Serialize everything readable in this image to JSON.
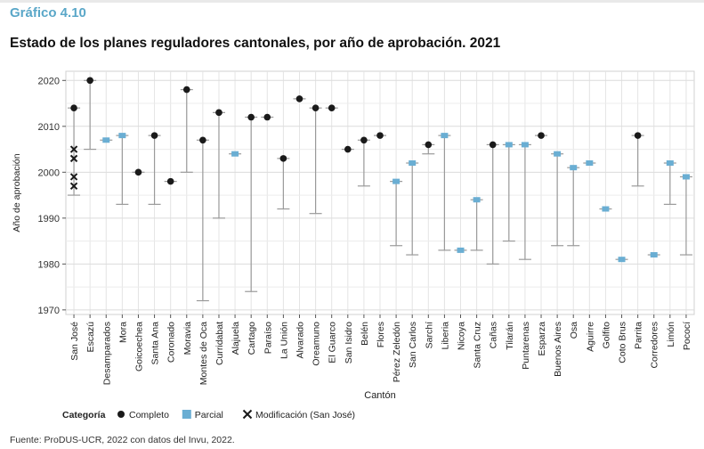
{
  "header": {
    "figure_label": "Gráfico 4.10",
    "title": "Estado de los planes reguladores cantonales, por año de aprobación. 2021"
  },
  "source_note": "Fuente: ProDUS-UCR, 2022 con datos del Invu, 2022.",
  "colors": {
    "completo": "#1a1a1a",
    "parcial": "#6aaed3",
    "modificacion": "#1a1a1a",
    "range_line": "#9a9a9a",
    "figure_label": "#5aa7c8"
  },
  "chart_data": {
    "type": "scatter",
    "title": "Estado de los planes reguladores cantonales, por año de aprobación. 2021",
    "xlabel": "Cantón",
    "ylabel": "Año de aprobación",
    "ylim": [
      1969,
      2022
    ],
    "yticks": [
      1970,
      1980,
      1990,
      2000,
      2010,
      2020
    ],
    "grid": true,
    "legend": {
      "title": "Categoría",
      "position": "bottom-left",
      "entries": [
        {
          "key": "completo",
          "label": "Completo",
          "marker": "circle"
        },
        {
          "key": "parcial",
          "label": "Parcial",
          "marker": "square"
        },
        {
          "key": "modificacion",
          "label": "Modificación (San José)",
          "marker": "x"
        }
      ]
    },
    "categories": [
      "San José",
      "Escazú",
      "Desamparados",
      "Mora",
      "Goicoechea",
      "Santa Ana",
      "Coronado",
      "Moravia",
      "Montes de Oca",
      "Curridabat",
      "Alajuela",
      "Cartago",
      "Paraíso",
      "La Unión",
      "Alvarado",
      "Oreamuno",
      "El Guarco",
      "San Isidro",
      "Belén",
      "Flores",
      "Pérez Zeledón",
      "San Carlos",
      "Sarchí",
      "Liberia",
      "Nicoya",
      "Santa Cruz",
      "Cañas",
      "Tilarán",
      "Puntarenas",
      "Esparza",
      "Buenos Aires",
      "Osa",
      "Aguirre",
      "Golfito",
      "Coto Brus",
      "Parrita",
      "Corredores",
      "Limón",
      "Pococí"
    ],
    "points": [
      {
        "canton": "San José",
        "year": 2014,
        "min": 1995,
        "max": 2014,
        "category": "completo"
      },
      {
        "canton": "Escazú",
        "year": 2020,
        "min": 2005,
        "max": 2020,
        "category": "completo"
      },
      {
        "canton": "Desamparados",
        "year": 2007,
        "min": 2007,
        "max": 2007,
        "category": "parcial"
      },
      {
        "canton": "Mora",
        "year": 2008,
        "min": 1993,
        "max": 2008,
        "category": "parcial"
      },
      {
        "canton": "Goicoechea",
        "year": 2000,
        "min": 2000,
        "max": 2000,
        "category": "completo"
      },
      {
        "canton": "Santa Ana",
        "year": 2008,
        "min": 1993,
        "max": 2008,
        "category": "completo"
      },
      {
        "canton": "Coronado",
        "year": 1998,
        "min": 1998,
        "max": 1998,
        "category": "completo"
      },
      {
        "canton": "Moravia",
        "year": 2018,
        "min": 2000,
        "max": 2018,
        "category": "completo"
      },
      {
        "canton": "Montes de Oca",
        "year": 2007,
        "min": 1972,
        "max": 2007,
        "category": "completo"
      },
      {
        "canton": "Curridabat",
        "year": 2013,
        "min": 1990,
        "max": 2013,
        "category": "completo"
      },
      {
        "canton": "Alajuela",
        "year": 2004,
        "min": 2004,
        "max": 2004,
        "category": "parcial"
      },
      {
        "canton": "Cartago",
        "year": 2012,
        "min": 1974,
        "max": 2012,
        "category": "completo"
      },
      {
        "canton": "Paraíso",
        "year": 2012,
        "min": 2012,
        "max": 2012,
        "category": "completo"
      },
      {
        "canton": "La Unión",
        "year": 2003,
        "min": 1992,
        "max": 2003,
        "category": "completo"
      },
      {
        "canton": "Alvarado",
        "year": 2016,
        "min": 2016,
        "max": 2016,
        "category": "completo"
      },
      {
        "canton": "Oreamuno",
        "year": 2014,
        "min": 1991,
        "max": 2014,
        "category": "completo"
      },
      {
        "canton": "El Guarco",
        "year": 2014,
        "min": 2014,
        "max": 2014,
        "category": "completo"
      },
      {
        "canton": "San Isidro",
        "year": 2005,
        "min": 2005,
        "max": 2005,
        "category": "completo"
      },
      {
        "canton": "Belén",
        "year": 2007,
        "min": 1997,
        "max": 2007,
        "category": "completo"
      },
      {
        "canton": "Flores",
        "year": 2008,
        "min": 2008,
        "max": 2008,
        "category": "completo"
      },
      {
        "canton": "Pérez Zeledón",
        "year": 1998,
        "min": 1984,
        "max": 1998,
        "category": "parcial"
      },
      {
        "canton": "San Carlos",
        "year": 2002,
        "min": 1982,
        "max": 2002,
        "category": "parcial"
      },
      {
        "canton": "Sarchí",
        "year": 2006,
        "min": 2004,
        "max": 2006,
        "category": "completo"
      },
      {
        "canton": "Liberia",
        "year": 2008,
        "min": 1983,
        "max": 2008,
        "category": "parcial"
      },
      {
        "canton": "Nicoya",
        "year": 1983,
        "min": 1983,
        "max": 1983,
        "category": "parcial"
      },
      {
        "canton": "Santa Cruz",
        "year": 1994,
        "min": 1983,
        "max": 1994,
        "category": "parcial"
      },
      {
        "canton": "Cañas",
        "year": 2006,
        "min": 1980,
        "max": 2006,
        "category": "completo"
      },
      {
        "canton": "Tilarán",
        "year": 2006,
        "min": 1985,
        "max": 2006,
        "category": "parcial"
      },
      {
        "canton": "Puntarenas",
        "year": 2006,
        "min": 1981,
        "max": 2006,
        "category": "parcial"
      },
      {
        "canton": "Esparza",
        "year": 2008,
        "min": 2008,
        "max": 2008,
        "category": "completo"
      },
      {
        "canton": "Buenos Aires",
        "year": 2004,
        "min": 1984,
        "max": 2004,
        "category": "parcial"
      },
      {
        "canton": "Osa",
        "year": 2001,
        "min": 1984,
        "max": 2001,
        "category": "parcial"
      },
      {
        "canton": "Aguirre",
        "year": 2002,
        "min": 2002,
        "max": 2002,
        "category": "parcial"
      },
      {
        "canton": "Golfito",
        "year": 1992,
        "min": 1992,
        "max": 1992,
        "category": "parcial"
      },
      {
        "canton": "Coto Brus",
        "year": 1981,
        "min": 1981,
        "max": 1981,
        "category": "parcial"
      },
      {
        "canton": "Parrita",
        "year": 2008,
        "min": 1997,
        "max": 2008,
        "category": "completo"
      },
      {
        "canton": "Corredores",
        "year": 1982,
        "min": 1982,
        "max": 1982,
        "category": "parcial"
      },
      {
        "canton": "Limón",
        "year": 2002,
        "min": 1993,
        "max": 2002,
        "category": "parcial"
      },
      {
        "canton": "Pococí",
        "year": 1999,
        "min": 1982,
        "max": 1999,
        "category": "parcial"
      }
    ],
    "modifications": {
      "canton": "San José",
      "years": [
        2005,
        2003,
        1999,
        1997
      ]
    }
  }
}
